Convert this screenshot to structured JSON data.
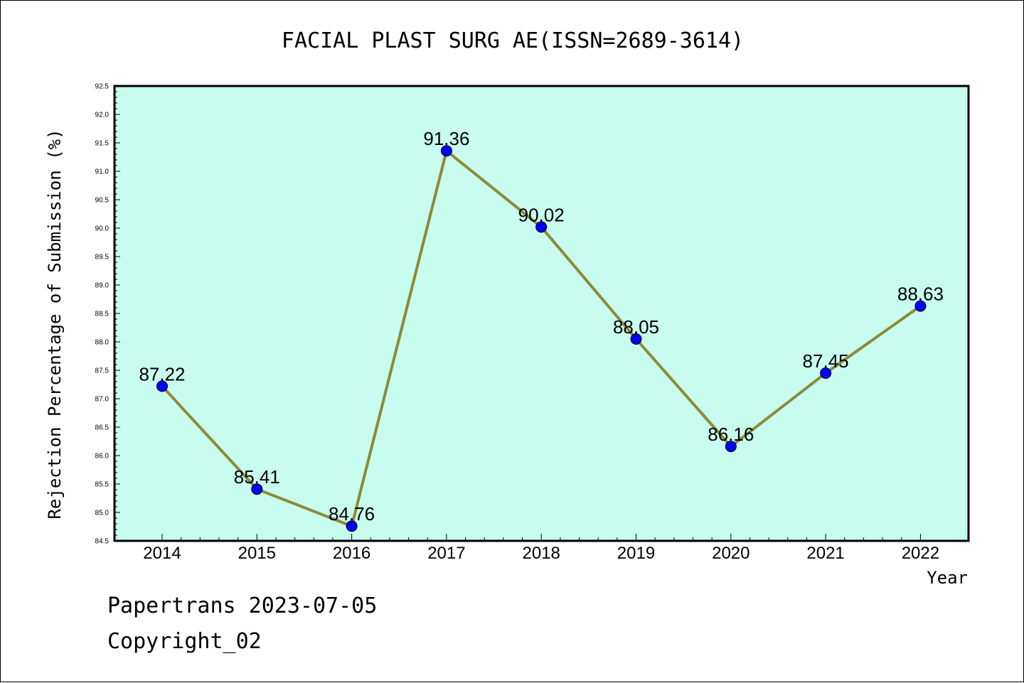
{
  "chart_data": {
    "type": "line",
    "title": "FACIAL PLAST SURG AE(ISSN=2689-3614)",
    "xlabel": "Year",
    "ylabel": "Rejection Percentage of Submission (%)",
    "x": [
      "2014",
      "2015",
      "2016",
      "2017",
      "2018",
      "2019",
      "2020",
      "2021",
      "2022"
    ],
    "values": [
      87.22,
      85.41,
      84.76,
      91.36,
      90.02,
      88.05,
      86.16,
      87.45,
      88.63
    ],
    "data_labels": [
      "87.22",
      "85.41",
      "84.76",
      "91.36",
      "90.02",
      "88.05",
      "86.16",
      "87.45",
      "88.63"
    ],
    "ylim": [
      84.5,
      92.5
    ],
    "yticks": [
      "84.5",
      "85.0",
      "85.5",
      "86.0",
      "86.5",
      "87.0",
      "87.5",
      "88.0",
      "88.5",
      "89.0",
      "89.5",
      "90.0",
      "90.5",
      "91.0",
      "91.5",
      "92.0",
      "92.5"
    ],
    "grid": false,
    "legend": "none",
    "colors": {
      "plot_background": "#c8fcee",
      "line": "#8b8b3a",
      "marker": "#0000ff"
    }
  },
  "footer": {
    "line1": "Papertrans 2023-07-05",
    "line2": "Copyright_02"
  }
}
